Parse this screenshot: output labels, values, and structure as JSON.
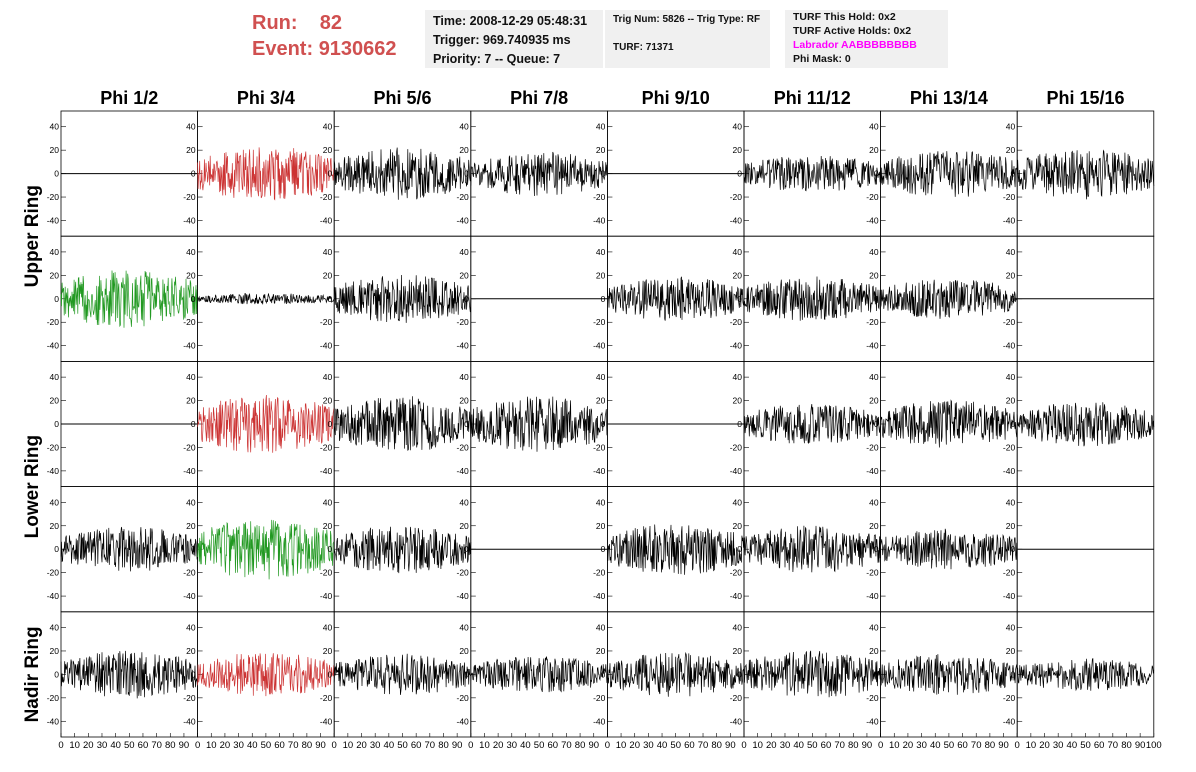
{
  "header": {
    "run_label": "Run:",
    "run_value": "82",
    "event_label": "Event:",
    "event_value": "9130662",
    "time": "Time: 2008-12-29 05:48:31",
    "trigger": "Trigger: 969.740935 ms",
    "priority": "Priority: 7 -- Queue: 7",
    "trig_num": "Trig Num: 5826 -- Trig Type: RF",
    "turf": "TURF: 71371",
    "turf_this_hold": "TURF This Hold: 0x2",
    "turf_active_holds": "TURF Active Holds: 0x2",
    "labrador": "Labrador AABBBBBBBB",
    "phi_mask": "Phi Mask: 0"
  },
  "colors": {
    "normal": "#000000",
    "red": "#cc3333",
    "green": "#229922",
    "magenta": "#ff00ff",
    "header_red": "#d05050"
  },
  "chart_data": {
    "type": "line",
    "columns": [
      "Phi 1/2",
      "Phi 3/4",
      "Phi 5/6",
      "Phi 7/8",
      "Phi 9/10",
      "Phi 11/12",
      "Phi 13/14",
      "Phi 15/16"
    ],
    "rows": [
      "Upper Ring",
      "Lower Ring",
      "Nadir Ring"
    ],
    "xlim": [
      0,
      100
    ],
    "ylim": [
      -50,
      50
    ],
    "yticks": [
      -40,
      -20,
      0,
      20,
      40
    ],
    "xticks": [
      0,
      10,
      20,
      30,
      40,
      50,
      60,
      70,
      80,
      90,
      100
    ],
    "panels": [
      [
        {
          "style": "flat",
          "color": "normal"
        },
        {
          "style": "noise",
          "color": "red",
          "amp": 15,
          "seed": 11
        },
        {
          "style": "noise",
          "color": "normal",
          "amp": 14,
          "seed": 12
        },
        {
          "style": "noise",
          "color": "normal",
          "amp": 12,
          "seed": 13
        },
        {
          "style": "flat",
          "color": "normal"
        },
        {
          "style": "noise",
          "color": "normal",
          "amp": 10,
          "seed": 15
        },
        {
          "style": "noise",
          "color": "normal",
          "amp": 13,
          "seed": 16
        },
        {
          "style": "noise",
          "color": "normal",
          "amp": 14,
          "seed": 17
        }
      ],
      [
        {
          "style": "noise",
          "color": "green",
          "amp": 16,
          "seed": 21
        },
        {
          "style": "noise",
          "color": "normal",
          "amp": 3,
          "seed": 22
        },
        {
          "style": "noise",
          "color": "normal",
          "amp": 13,
          "seed": 23
        },
        {
          "style": "flat",
          "color": "normal"
        },
        {
          "style": "noise",
          "color": "normal",
          "amp": 12,
          "seed": 25
        },
        {
          "style": "noise",
          "color": "normal",
          "amp": 12,
          "seed": 26
        },
        {
          "style": "noise",
          "color": "normal",
          "amp": 11,
          "seed": 27
        },
        {
          "style": "flat",
          "color": "normal"
        }
      ],
      [
        {
          "style": "flat",
          "color": "normal"
        },
        {
          "style": "noise",
          "color": "red",
          "amp": 16,
          "seed": 31
        },
        {
          "style": "noise",
          "color": "normal",
          "amp": 15,
          "seed": 32
        },
        {
          "style": "noise",
          "color": "normal",
          "amp": 15,
          "seed": 33
        },
        {
          "style": "flat",
          "color": "normal"
        },
        {
          "style": "noise",
          "color": "normal",
          "amp": 11,
          "seed": 35
        },
        {
          "style": "noise",
          "color": "normal",
          "amp": 13,
          "seed": 36
        },
        {
          "style": "noise",
          "color": "normal",
          "amp": 12,
          "seed": 37
        }
      ],
      [
        {
          "style": "noise",
          "color": "normal",
          "amp": 12,
          "seed": 41
        },
        {
          "style": "noise",
          "color": "green",
          "amp": 17,
          "seed": 42
        },
        {
          "style": "noise",
          "color": "normal",
          "amp": 13,
          "seed": 43
        },
        {
          "style": "flat",
          "color": "normal"
        },
        {
          "style": "noise",
          "color": "normal",
          "amp": 14,
          "seed": 45
        },
        {
          "style": "noise",
          "color": "normal",
          "amp": 13,
          "seed": 46
        },
        {
          "style": "noise",
          "color": "normal",
          "amp": 11,
          "seed": 47
        },
        {
          "style": "flat",
          "color": "normal"
        }
      ],
      [
        {
          "style": "noise",
          "color": "normal",
          "amp": 13,
          "seed": 51
        },
        {
          "style": "noise",
          "color": "red",
          "amp": 12,
          "seed": 52
        },
        {
          "style": "noise",
          "color": "normal",
          "amp": 11,
          "seed": 53
        },
        {
          "style": "noise",
          "color": "normal",
          "amp": 10,
          "seed": 54
        },
        {
          "style": "noise",
          "color": "normal",
          "amp": 12,
          "seed": 55
        },
        {
          "style": "noise",
          "color": "normal",
          "amp": 13,
          "seed": 56
        },
        {
          "style": "noise",
          "color": "normal",
          "amp": 11,
          "seed": 57
        },
        {
          "style": "noise",
          "color": "normal",
          "amp": 9,
          "seed": 58
        }
      ]
    ]
  }
}
